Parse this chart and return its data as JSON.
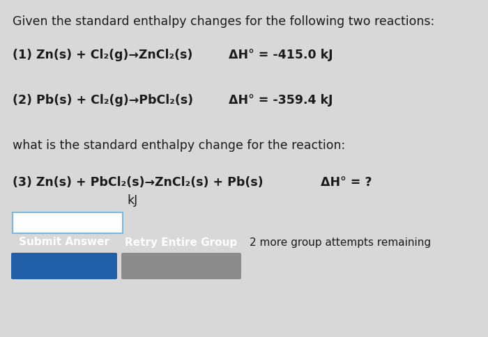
{
  "background_color": "#d8d8d8",
  "title_text": "Given the standard enthalpy changes for the following two reactions:",
  "reaction1_left": "(1) Zn(s) + Cl₂(g)→ZnCl₂(s)",
  "reaction1_right": "ΔH° = -415.0 kJ",
  "reaction2_left": "(2) Pb(s) + Cl₂(g)→PbCl₂(s)",
  "reaction2_right": "ΔH° = -359.4 kJ",
  "question_text": "what is the standard enthalpy change for the reaction:",
  "reaction3_left": "(3) Zn(s) + PbCl₂(s)→ZnCl₂(s) + Pb(s)",
  "reaction3_right": "ΔH° = ?",
  "kj_label": "kJ",
  "submit_text": "Submit Answer",
  "retry_text": "Retry Entire Group",
  "remaining_text": "2 more group attempts remaining",
  "submit_color": "#2160a8",
  "retry_color": "#8c8c8c",
  "input_border_color": "#7ab8e0",
  "font_color": "#1a1a1a",
  "title_fontsize": 12.5,
  "body_fontsize": 12.5,
  "bold_fontsize": 12.5,
  "button_fontsize": 11.0,
  "remaining_fontsize": 11.0
}
